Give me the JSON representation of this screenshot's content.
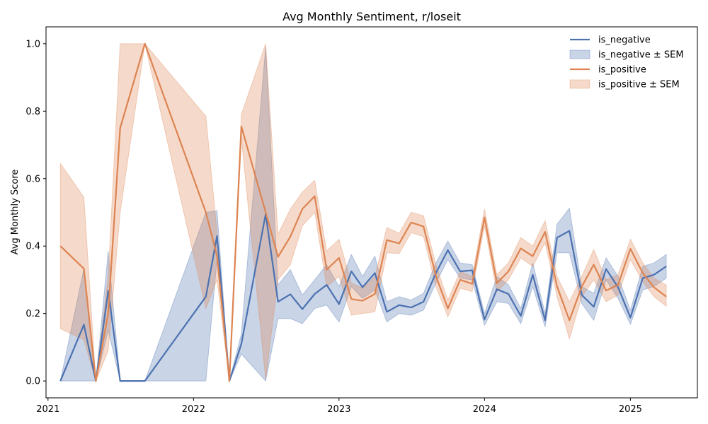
{
  "chart_data": {
    "type": "line",
    "title": "Avg Monthly Sentiment, r/loseit",
    "xlabel": "",
    "ylabel": "Avg Monthly Score",
    "xlim": [
      "2020-12-27",
      "2025-06-18"
    ],
    "ylim": [
      -0.05,
      1.05
    ],
    "x_ticks": [
      {
        "label": "2021",
        "date": "2021-01-01"
      },
      {
        "label": "2022",
        "date": "2022-01-01"
      },
      {
        "label": "2023",
        "date": "2023-01-01"
      },
      {
        "label": "2024",
        "date": "2024-01-01"
      },
      {
        "label": "2025",
        "date": "2025-01-01"
      }
    ],
    "y_ticks": [
      "0.0",
      "0.2",
      "0.4",
      "0.6",
      "0.8",
      "1.0"
    ],
    "legend_position": "top-right",
    "series": [
      {
        "name": "is_negative",
        "band_name": "is_negative ± SEM",
        "color": "#4c72b0",
        "x": [
          "2021-02",
          "2021-04",
          "2021-05",
          "2021-06",
          "2021-07",
          "2021-09",
          "2022-02",
          "2022-03",
          "2022-04",
          "2022-05",
          "2022-07",
          "2022-08",
          "2022-09",
          "2022-10",
          "2022-11",
          "2022-12",
          "2023-01",
          "2023-02",
          "2023-03",
          "2023-04",
          "2023-05",
          "2023-06",
          "2023-07",
          "2023-08",
          "2023-09",
          "2023-10",
          "2023-11",
          "2023-12",
          "2024-01",
          "2024-02",
          "2024-03",
          "2024-04",
          "2024-05",
          "2024-06",
          "2024-07",
          "2024-08",
          "2024-09",
          "2024-10",
          "2024-11",
          "2024-12",
          "2025-01",
          "2025-02",
          "2025-03",
          "2025-04"
        ],
        "values": [
          0.0,
          0.167,
          0.0,
          0.267,
          0.0,
          0.0,
          0.25,
          0.43,
          0.0,
          0.11,
          0.495,
          0.235,
          0.257,
          0.213,
          0.258,
          0.285,
          0.228,
          0.325,
          0.278,
          0.32,
          0.205,
          0.225,
          0.218,
          0.235,
          0.32,
          0.388,
          0.325,
          0.328,
          0.182,
          0.272,
          0.258,
          0.193,
          0.315,
          0.18,
          0.425,
          0.445,
          0.255,
          0.22,
          0.332,
          0.278,
          0.188,
          0.305,
          0.315,
          0.34
        ],
        "lower": [
          0.0,
          0.0,
          0.0,
          0.15,
          0.0,
          0.0,
          0.0,
          0.36,
          0.0,
          0.08,
          0.0,
          0.185,
          0.185,
          0.17,
          0.215,
          0.225,
          0.175,
          0.28,
          0.245,
          0.27,
          0.175,
          0.2,
          0.195,
          0.21,
          0.29,
          0.36,
          0.305,
          0.3,
          0.165,
          0.235,
          0.23,
          0.17,
          0.28,
          0.16,
          0.38,
          0.38,
          0.23,
          0.18,
          0.3,
          0.245,
          0.168,
          0.27,
          0.28,
          0.305
        ],
        "upper": [
          0.0,
          0.333,
          0.0,
          0.385,
          0.0,
          0.0,
          0.5,
          0.505,
          0.0,
          0.14,
          0.99,
          0.285,
          0.33,
          0.255,
          0.3,
          0.345,
          0.28,
          0.375,
          0.31,
          0.37,
          0.235,
          0.25,
          0.24,
          0.26,
          0.35,
          0.415,
          0.35,
          0.345,
          0.2,
          0.31,
          0.285,
          0.215,
          0.35,
          0.2,
          0.465,
          0.512,
          0.28,
          0.26,
          0.365,
          0.31,
          0.21,
          0.34,
          0.35,
          0.375
        ]
      },
      {
        "name": "is_positive",
        "band_name": "is_positive ± SEM",
        "color": "#dd8452",
        "x": [
          "2021-02",
          "2021-04",
          "2021-05",
          "2021-06",
          "2021-07",
          "2021-09",
          "2022-02",
          "2022-03",
          "2022-04",
          "2022-05",
          "2022-07",
          "2022-08",
          "2022-09",
          "2022-10",
          "2022-11",
          "2022-12",
          "2023-01",
          "2023-02",
          "2023-03",
          "2023-04",
          "2023-05",
          "2023-06",
          "2023-07",
          "2023-08",
          "2023-09",
          "2023-10",
          "2023-11",
          "2023-12",
          "2024-01",
          "2024-02",
          "2024-03",
          "2024-04",
          "2024-05",
          "2024-06",
          "2024-07",
          "2024-08",
          "2024-09",
          "2024-10",
          "2024-11",
          "2024-12",
          "2025-01",
          "2025-02",
          "2025-03",
          "2025-04"
        ],
        "values": [
          0.4,
          0.333,
          0.0,
          0.2,
          0.75,
          1.0,
          0.5,
          0.37,
          0.0,
          0.755,
          0.5,
          0.368,
          0.428,
          0.51,
          0.548,
          0.33,
          0.365,
          0.243,
          0.238,
          0.258,
          0.418,
          0.408,
          0.47,
          0.458,
          0.312,
          0.215,
          0.3,
          0.288,
          0.485,
          0.29,
          0.325,
          0.393,
          0.37,
          0.442,
          0.28,
          0.18,
          0.28,
          0.345,
          0.268,
          0.285,
          0.392,
          0.32,
          0.278,
          0.25
        ],
        "lower": [
          0.155,
          0.122,
          0.0,
          0.09,
          0.5,
          1.0,
          0.215,
          0.3,
          0.0,
          0.72,
          0.005,
          0.3,
          0.345,
          0.46,
          0.5,
          0.28,
          0.31,
          0.195,
          0.2,
          0.205,
          0.38,
          0.378,
          0.44,
          0.428,
          0.28,
          0.19,
          0.275,
          0.265,
          0.46,
          0.265,
          0.3,
          0.365,
          0.34,
          0.41,
          0.25,
          0.125,
          0.25,
          0.3,
          0.235,
          0.255,
          0.36,
          0.295,
          0.25,
          0.222
        ],
        "upper": [
          0.645,
          0.545,
          0.0,
          0.31,
          1.0,
          1.0,
          0.785,
          0.44,
          0.0,
          0.79,
          1.0,
          0.435,
          0.51,
          0.56,
          0.595,
          0.385,
          0.42,
          0.29,
          0.275,
          0.31,
          0.455,
          0.438,
          0.5,
          0.49,
          0.345,
          0.24,
          0.325,
          0.31,
          0.51,
          0.315,
          0.35,
          0.425,
          0.4,
          0.475,
          0.31,
          0.235,
          0.31,
          0.39,
          0.3,
          0.315,
          0.42,
          0.35,
          0.305,
          0.285
        ]
      }
    ]
  }
}
